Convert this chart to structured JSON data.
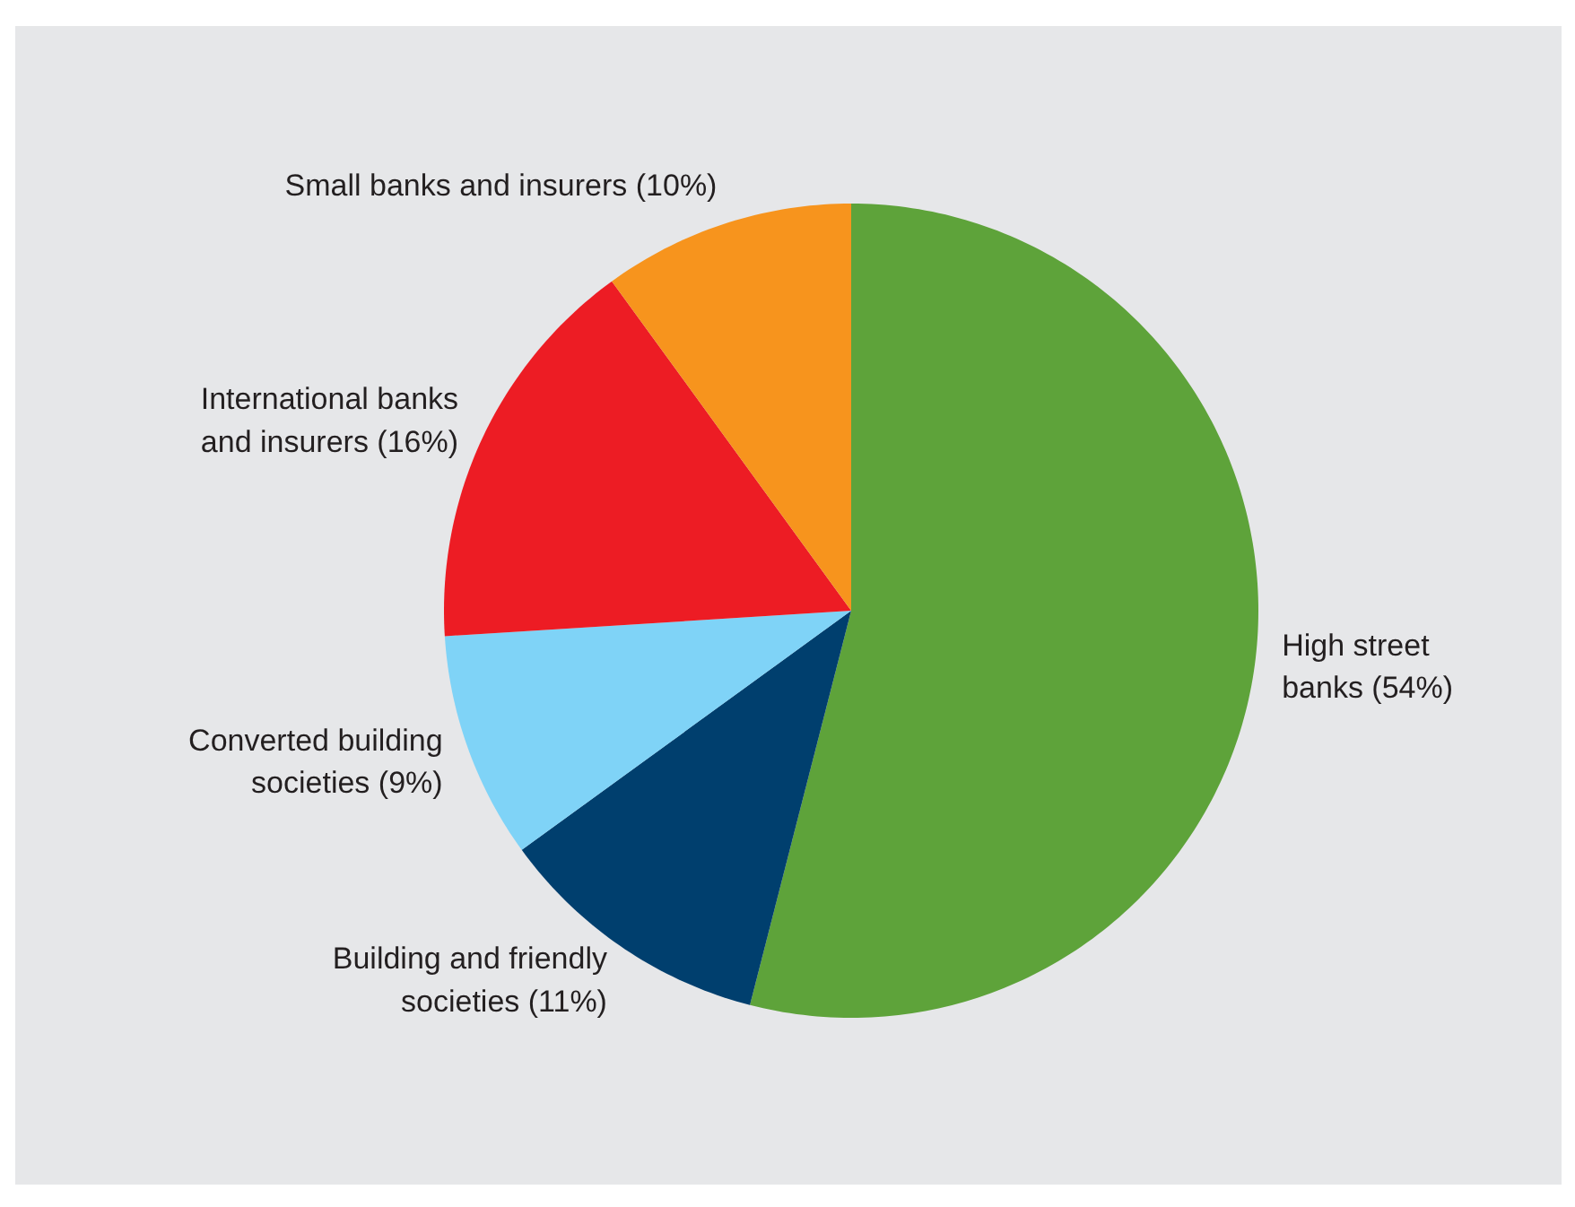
{
  "chart_data": {
    "type": "pie",
    "categories": [
      "High street\nbanks (54%)",
      "Building and friendly\nsocieties (11%)",
      "Converted building\nsocieties (9%)",
      "International banks\nand insurers (16%)",
      "Small banks and insurers (10%)"
    ],
    "values": [
      54,
      11,
      9,
      16,
      10
    ],
    "colors": [
      "#5ea33a",
      "#003f6e",
      "#7fd3f7",
      "#ed1c24",
      "#f7941d"
    ]
  }
}
